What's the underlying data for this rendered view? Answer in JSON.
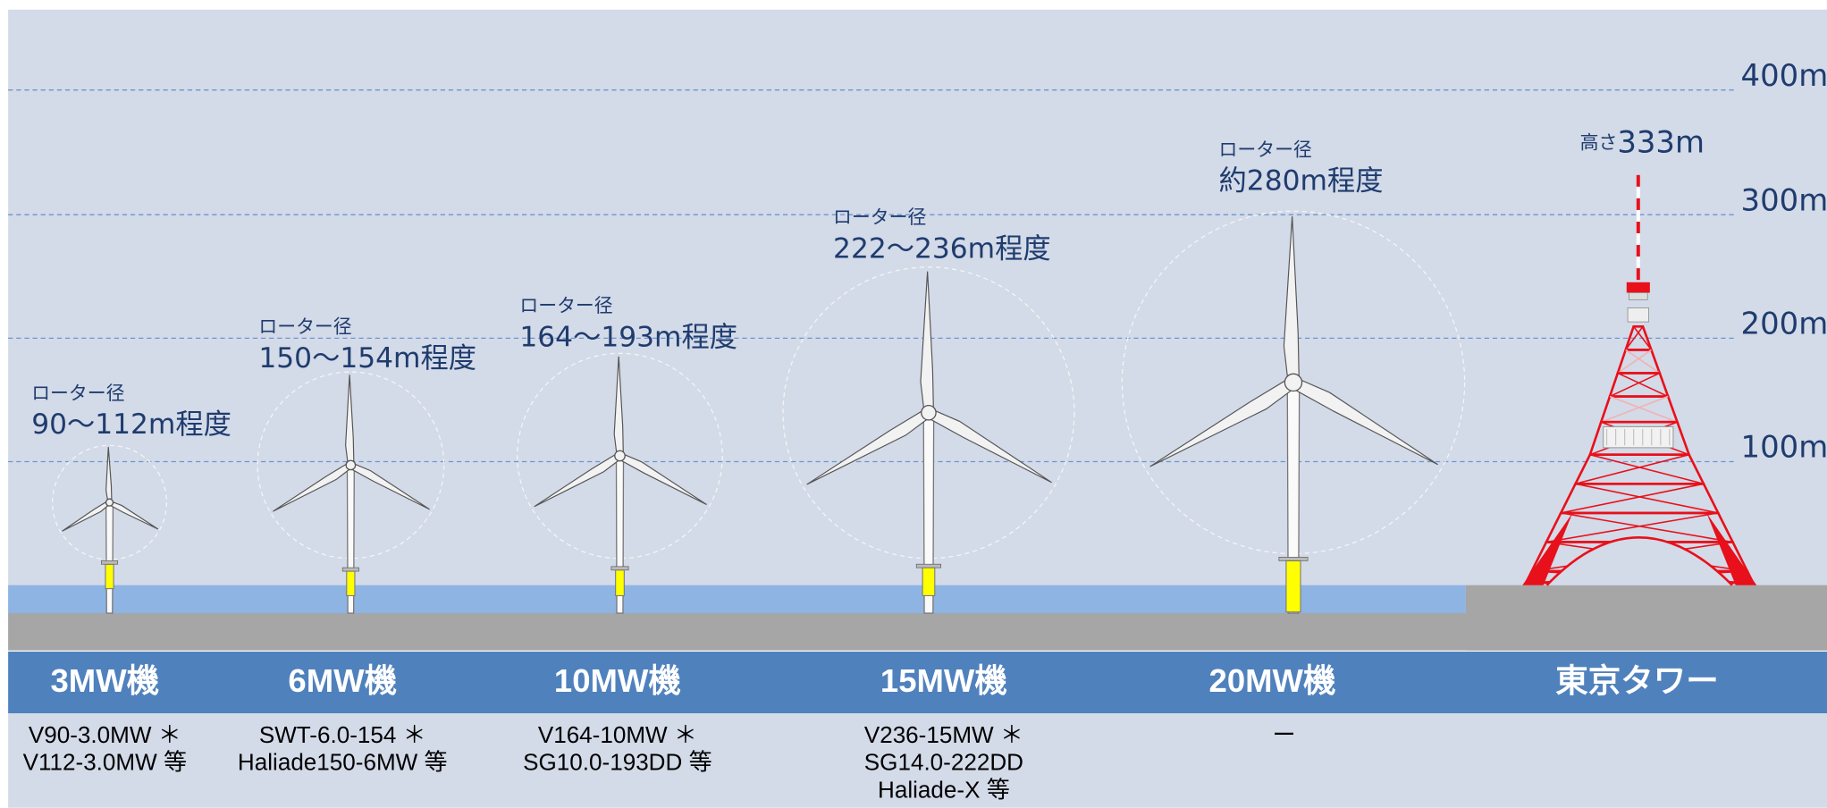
{
  "height_axis": {
    "labels": [
      "400m",
      "300m",
      "200m",
      "100m"
    ]
  },
  "columns": [
    {
      "name": "3MW機",
      "rotor_label": "ローター径",
      "rotor_size": "90〜112m程度",
      "models": [
        "V90-3.0MW ＊",
        "V112-3.0MW 等"
      ]
    },
    {
      "name": "6MW機",
      "rotor_label": "ローター径",
      "rotor_size": "150〜154m程度",
      "models": [
        "SWT-6.0-154 ＊",
        "Haliade150-6MW 等"
      ]
    },
    {
      "name": "10MW機",
      "rotor_label": "ローター径",
      "rotor_size": "164〜193m程度",
      "models": [
        "V164-10MW ＊",
        "SG10.0-193DD 等"
      ]
    },
    {
      "name": "15MW機",
      "rotor_label": "ローター径",
      "rotor_size": "222〜236m程度",
      "models": [
        "V236-15MW ＊",
        "SG14.0-222DD",
        "Haliade-X 等"
      ]
    },
    {
      "name": "20MW機",
      "rotor_label": "ローター径",
      "rotor_size": "約280m程度",
      "models": [
        "ー"
      ]
    },
    {
      "name": "東京タワー",
      "height_label": "高さ",
      "height_value": "333m",
      "models": []
    }
  ]
}
